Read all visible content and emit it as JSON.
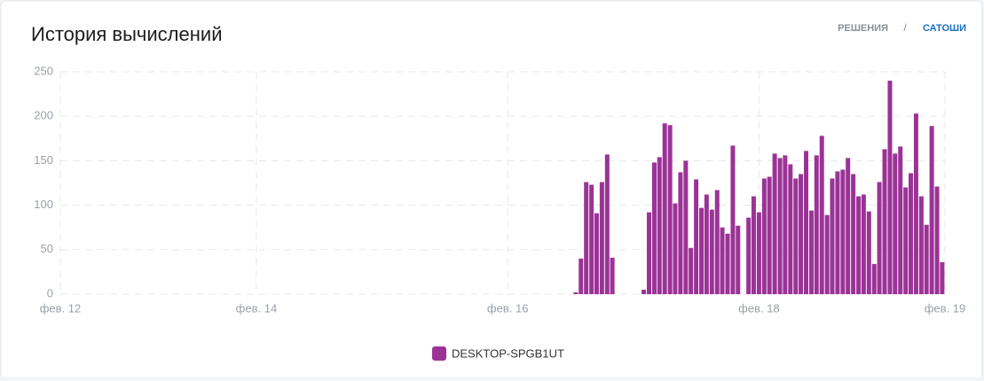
{
  "header": {
    "title": "История вычислений",
    "tabs": [
      "РЕШЕНИЯ",
      "/",
      "САТОШИ"
    ]
  },
  "chart_data": {
    "type": "bar",
    "x": [
      16.542,
      16.583,
      16.625,
      16.667,
      16.708,
      16.75,
      16.792,
      16.833,
      17.083,
      17.125,
      17.167,
      17.208,
      17.25,
      17.292,
      17.333,
      17.375,
      17.417,
      17.458,
      17.5,
      17.542,
      17.583,
      17.625,
      17.667,
      17.708,
      17.75,
      17.792,
      17.833,
      17.917,
      17.958,
      18.0,
      18.042,
      18.083,
      18.125,
      18.167,
      18.208,
      18.25,
      18.292,
      18.333,
      18.375,
      18.417,
      18.458,
      18.5,
      18.542,
      18.583,
      18.625,
      18.667,
      18.708,
      18.75,
      18.792,
      18.833,
      18.875,
      18.917,
      18.958,
      19.0,
      19.042,
      19.083,
      19.125,
      19.167,
      19.208,
      19.25,
      19.292,
      19.333,
      19.375,
      19.417,
      19.458
    ],
    "series": [
      {
        "name": "DESKTOP-SPGB1UT",
        "color": "#9b3396",
        "values": [
          2,
          40,
          126,
          123,
          91,
          126,
          157,
          41,
          5,
          92,
          148,
          154,
          192,
          190,
          102,
          137,
          150,
          52,
          129,
          97,
          112,
          95,
          117,
          75,
          68,
          167,
          77,
          86,
          110,
          92,
          130,
          132,
          158,
          153,
          156,
          146,
          130,
          135,
          161,
          94,
          156,
          178,
          89,
          130,
          138,
          140,
          153,
          135,
          110,
          112,
          93,
          34,
          126,
          163,
          240,
          158,
          166,
          120,
          136,
          203,
          110,
          78,
          189,
          121,
          36
        ]
      }
    ],
    "xlim": [
      12.44,
      19.48
    ],
    "xticks": [
      {
        "value": 12.44,
        "label": "фев. 12"
      },
      {
        "value": 14,
        "label": "фев. 14"
      },
      {
        "value": 16,
        "label": "фев. 16"
      },
      {
        "value": 18,
        "label": "фев. 18"
      },
      {
        "value": 19.48,
        "label": "фев. 19"
      }
    ],
    "ylim": [
      0,
      250
    ],
    "yticks": [
      0,
      50,
      100,
      150,
      200,
      250
    ],
    "grid": true
  }
}
